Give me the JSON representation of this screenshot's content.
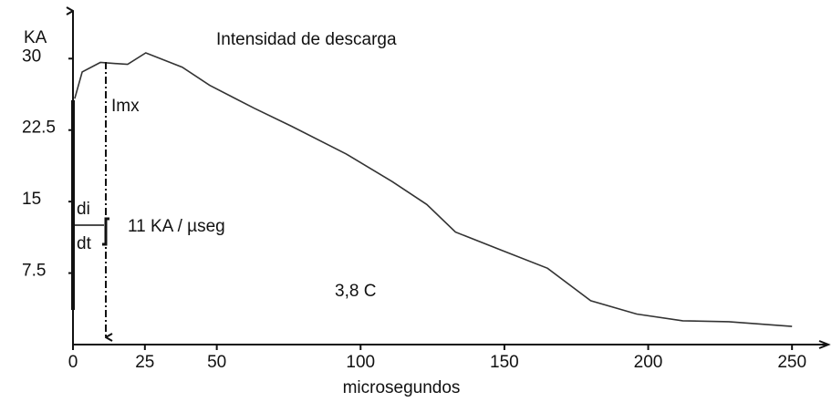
{
  "chart_data": {
    "type": "line",
    "title": "Intensidad de descarga",
    "ylabel": "KA",
    "xlabel": "microsegundos",
    "annotations": [
      "Imx",
      "di",
      "dt",
      "11 KA / µseg",
      "3,8 C"
    ],
    "x": [
      0.6,
      3.2,
      9.5,
      19,
      25.3,
      38,
      47.5,
      63,
      76,
      95,
      111,
      123,
      133,
      149,
      165,
      180,
      196,
      212,
      228,
      250
    ],
    "values": [
      25.8,
      28.6,
      29.6,
      29.4,
      30.6,
      29.1,
      27.2,
      24.8,
      22.9,
      20,
      17.1,
      14.7,
      11.8,
      9.9,
      8,
      4.6,
      3.2,
      2.5,
      2.4,
      1.9
    ],
    "color": "#333333",
    "xlim": [
      0,
      262
    ],
    "ylim": [
      0,
      35
    ],
    "xticks": [
      0,
      25,
      50,
      100,
      150,
      200,
      250
    ],
    "yticks": [
      7.5,
      15,
      22.5,
      30
    ]
  }
}
